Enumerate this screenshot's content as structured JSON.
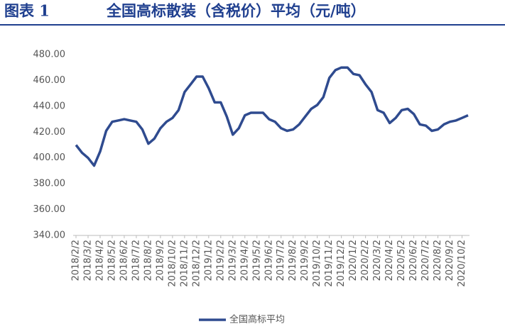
{
  "chart_data": {
    "type": "line",
    "label": "图表 1",
    "title": "全国高标散装（含税价）平均（元/吨）",
    "categories": [
      "2018/2/2",
      null,
      "2018/3/2",
      null,
      "2018/4/2",
      null,
      "2018/5/2",
      null,
      "2018/6/2",
      null,
      "2018/7/2",
      null,
      "2018/8/2",
      null,
      "2018/9/2",
      null,
      "2018/10/2",
      null,
      "2018/11/2",
      null,
      "2018/12/2",
      null,
      "2019/1/2",
      null,
      "2019/2/2",
      null,
      "2019/3/2",
      null,
      "2019/4/2",
      null,
      "2019/5/2",
      null,
      "2019/6/2",
      null,
      "2019/7/2",
      null,
      "2019/8/2",
      null,
      "2019/9/2",
      null,
      "2019/10/2",
      null,
      "2019/11/2",
      null,
      "2019/12/2",
      null,
      "2020/1/2",
      null,
      "2020/2/2",
      null,
      "2020/3/2",
      null,
      "2020/4/2",
      null,
      "2020/5/2",
      null,
      "2020/6/2",
      null,
      "2020/7/2",
      null,
      "2020/8/2",
      null,
      "2020/9/2",
      null,
      "2020/10/2",
      null
    ],
    "series": [
      {
        "name": "全国高标平均",
        "color": "#2f4b8f",
        "values": [
          410,
          404,
          400,
          394,
          405,
          421,
          428,
          429,
          430,
          429,
          428,
          422,
          411,
          415,
          423,
          428,
          431,
          437,
          451,
          457,
          463,
          463,
          454,
          443,
          443,
          432,
          418,
          423,
          433,
          435,
          435,
          435,
          430,
          428,
          423,
          421,
          422,
          426,
          432,
          438,
          441,
          447,
          462,
          468,
          470,
          470,
          465,
          464,
          457,
          451,
          437,
          435,
          427,
          431,
          437,
          438,
          434,
          426,
          425,
          421,
          422,
          426,
          428,
          429,
          431,
          433
        ]
      }
    ],
    "ylim": [
      340,
      480
    ],
    "yticks": [
      {
        "value": 340,
        "label": "340.00"
      },
      {
        "value": 360,
        "label": "360.00"
      },
      {
        "value": 380,
        "label": "380.00"
      },
      {
        "value": 400,
        "label": "400.00"
      },
      {
        "value": 420,
        "label": "420.00"
      },
      {
        "value": 440,
        "label": "440.00"
      },
      {
        "value": 460,
        "label": "460.00"
      },
      {
        "value": 480,
        "label": "480.00"
      }
    ],
    "grid": false,
    "legend": "bottom"
  }
}
